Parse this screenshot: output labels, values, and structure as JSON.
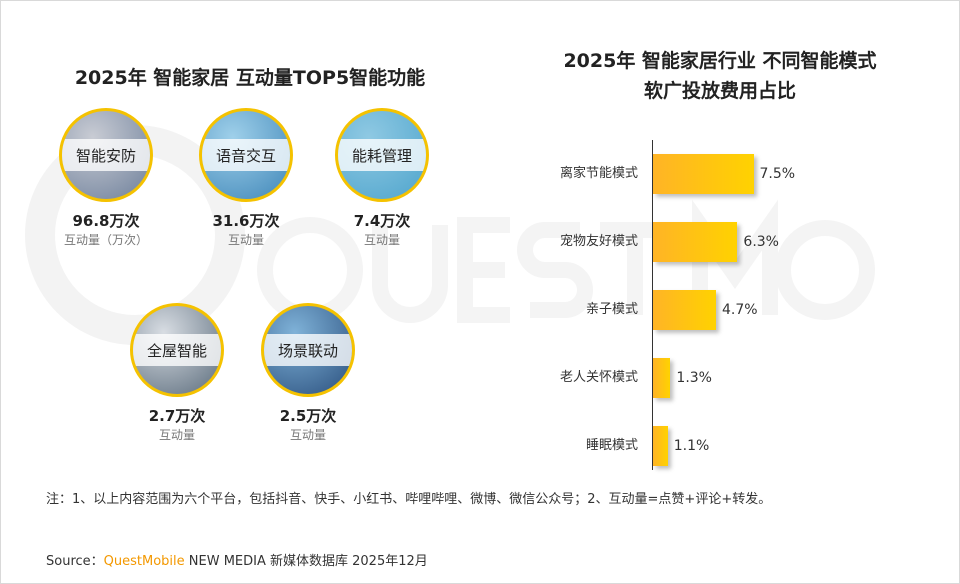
{
  "watermark": "QUEST MOBILE",
  "left": {
    "title": "2025年 智能家居 互动量TOP5智能功能",
    "items": [
      {
        "name": "智能安防",
        "value": "96.8万次",
        "label": "互动量（万次）",
        "bg": [
          "#c9ccd4",
          "#6d7f9a"
        ]
      },
      {
        "name": "语音交互",
        "value": "31.6万次",
        "label": "互动量",
        "bg": [
          "#9fd0ea",
          "#3f86b8"
        ]
      },
      {
        "name": "能耗管理",
        "value": "7.4万次",
        "label": "互动量",
        "bg": [
          "#8fc9e3",
          "#4ea4cc"
        ]
      },
      {
        "name": "全屋智能",
        "value": "2.7万次",
        "label": "互动量",
        "bg": [
          "#d8dde3",
          "#5a6b7b"
        ]
      },
      {
        "name": "场景联动",
        "value": "2.5万次",
        "label": "互动量",
        "bg": [
          "#7fb2d8",
          "#2a4f7d"
        ]
      }
    ]
  },
  "chart_data": {
    "type": "bar",
    "orientation": "horizontal",
    "title": "2025年 智能家居行业 不同智能模式软广投放费用占比",
    "title_lines": [
      "2025年 智能家居行业 不同智能模式",
      "软广投放费用占比"
    ],
    "categories": [
      "离家节能模式",
      "宠物友好模式",
      "亲子模式",
      "老人关怀模式",
      "睡眠模式"
    ],
    "values": [
      7.5,
      6.3,
      4.7,
      1.3,
      1.1
    ],
    "labels": [
      "7.5%",
      "6.3%",
      "4.7%",
      "1.3%",
      "1.1%"
    ],
    "unit": "%",
    "bar_color": [
      "#ffb426",
      "#ffd200"
    ],
    "grid": false
  },
  "footer": {
    "note": "注：1、以上内容范围为六个平台，包括抖音、快手、小红书、哔哩哔哩、微博、微信公众号；2、互动量=点赞+评论+转发。",
    "source_prefix": "Source：",
    "source_brand": "QuestMobile",
    "source_rest": " NEW MEDIA 新媒体数据库 2025年12月"
  }
}
